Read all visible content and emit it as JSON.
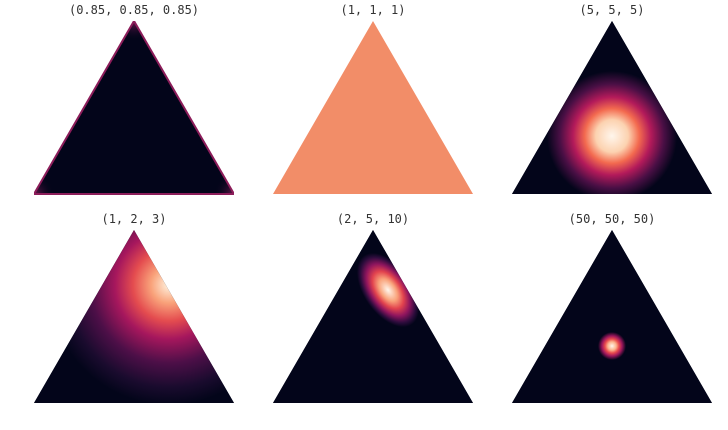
{
  "panels": [
    {
      "title": "(0.85, 0.85, 0.85)",
      "alpha": [
        0.85,
        0.85,
        0.85
      ]
    },
    {
      "title": "(1, 1, 1)",
      "alpha": [
        1,
        1,
        1
      ]
    },
    {
      "title": "(5, 5, 5)",
      "alpha": [
        5,
        5,
        5
      ]
    },
    {
      "title": "(1, 2, 3)",
      "alpha": [
        1,
        2,
        3
      ]
    },
    {
      "title": "(2, 5, 10)",
      "alpha": [
        2,
        5,
        10
      ]
    },
    {
      "title": "(50, 50, 50)",
      "alpha": [
        50,
        50,
        50
      ]
    }
  ],
  "colors": {
    "background": "#03051a",
    "flat": "#f28d68",
    "mid": "#c2185b",
    "hot": "#f47b51",
    "peak": "#fff3e8",
    "edge": "#8c1d5a"
  }
}
